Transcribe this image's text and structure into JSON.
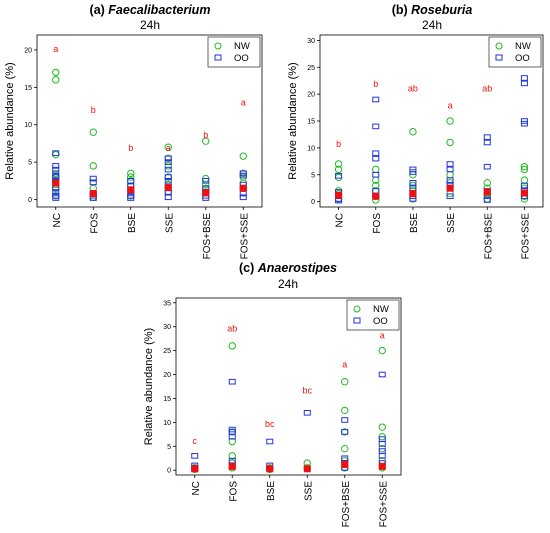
{
  "chart_data": [
    {
      "type": "scatter",
      "panel_label": "(a)",
      "title": "Faecalibacterium",
      "subtitle": "24h",
      "ylabel": "Relative abundance (%)",
      "xlabel": "",
      "categories": [
        "NC",
        "FOS",
        "BSE",
        "SSE",
        "FOS+BSE",
        "FOS+SSE"
      ],
      "ylim": [
        -1,
        22
      ],
      "yticks": [
        0,
        5,
        10,
        15,
        20
      ],
      "grid": false,
      "legend": {
        "position": "top-right",
        "entries": [
          "NW",
          "OO"
        ]
      },
      "series": [
        {
          "name": "NW",
          "marker": "circle",
          "values": [
            [
              17.0,
              16.0,
              6.0,
              3.5,
              3.0,
              2.5,
              2.0,
              1.5,
              0.5
            ],
            [
              9.0,
              4.5,
              1.5,
              0.8,
              0.3
            ],
            [
              3.5,
              3.0,
              2.5,
              1.8,
              1.2,
              0.5
            ],
            [
              7.0,
              5.5,
              4.5,
              3.0,
              2.0,
              1.0
            ],
            [
              7.8,
              2.8,
              2.0,
              1.5,
              1.0
            ],
            [
              5.8,
              3.5,
              3.0,
              2.2,
              1.5
            ]
          ]
        },
        {
          "name": "OO",
          "marker": "square",
          "values": [
            [
              6.2,
              4.5,
              4.0,
              3.2,
              3.0,
              2.5,
              1.5,
              1.0,
              0.5,
              0.2
            ],
            [
              2.8,
              2.3,
              0.8,
              0.5,
              0.2
            ],
            [
              2.5,
              1.8,
              1.0,
              0.5,
              0.2
            ],
            [
              5.5,
              5.0,
              4.0,
              3.0,
              2.5,
              1.5,
              1.0,
              0.3
            ],
            [
              2.5,
              1.5,
              1.0,
              0.5,
              0.2
            ],
            [
              3.5,
              3.2,
              2.0,
              1.5,
              0.8,
              0.3
            ]
          ]
        },
        {
          "name": "",
          "marker": "red-square",
          "values": [
            2.2,
            0.8,
            1.3,
            1.6,
            0.9,
            1.5
          ]
        }
      ],
      "annotations": [
        "a",
        "b",
        "b",
        "a",
        "b",
        "a"
      ],
      "annotation_heights": [
        19.7,
        11.6,
        6.5,
        6.5,
        8.2,
        12.6
      ]
    },
    {
      "type": "scatter",
      "panel_label": "(b)",
      "title": "Roseburia",
      "subtitle": "24h",
      "ylabel": "Relative abundance (%)",
      "xlabel": "",
      "categories": [
        "NC",
        "FOS",
        "BSE",
        "SSE",
        "FOS+BSE",
        "FOS+SSE"
      ],
      "ylim": [
        -1,
        31
      ],
      "yticks": [
        0,
        5,
        10,
        15,
        20,
        25,
        30
      ],
      "grid": false,
      "legend": {
        "position": "top-right",
        "entries": [
          "NW",
          "OO"
        ]
      },
      "series": [
        {
          "name": "NW",
          "marker": "circle",
          "values": [
            [
              7.0,
              6.0,
              4.5,
              2.0,
              1.5,
              0.5
            ],
            [
              6.0,
              4.0,
              3.0,
              2.0,
              1.0,
              0.3
            ],
            [
              13.0,
              5.0,
              3.0,
              2.0,
              1.5,
              0.5
            ],
            [
              15.0,
              11.0,
              5.0,
              3.5,
              1.5
            ],
            [
              3.5,
              2.5,
              1.5,
              0.5
            ],
            [
              6.5,
              6.0,
              4.0,
              2.5,
              1.0,
              0.5
            ]
          ]
        },
        {
          "name": "OO",
          "marker": "square",
          "values": [
            [
              4.8,
              1.8,
              1.0,
              0.5,
              0.2
            ],
            [
              19.0,
              14.0,
              9.0,
              8.0,
              5.0,
              2.0,
              1.0
            ],
            [
              6.0,
              5.5,
              3.5,
              2.5,
              1.5,
              1.0,
              0.5
            ],
            [
              7.0,
              6.0,
              4.0,
              3.0,
              2.5,
              1.0
            ],
            [
              12.0,
              11.0,
              6.5,
              2.0,
              1.0,
              0.3
            ],
            [
              23.0,
              22.0,
              15.0,
              14.5,
              3.0,
              2.0,
              1.0
            ]
          ]
        },
        {
          "name": "",
          "marker": "red-square",
          "values": [
            1.2,
            1.0,
            1.5,
            2.5,
            1.8,
            1.6
          ]
        }
      ],
      "annotations": [
        "b",
        "b",
        "ab",
        "a",
        "ab",
        "ab"
      ],
      "annotation_heights": [
        10.2,
        21.3,
        20.5,
        17.3,
        20.5,
        25.8
      ]
    },
    {
      "type": "scatter",
      "panel_label": "(c)",
      "title": "Anaerostipes",
      "subtitle": "24h",
      "ylabel": "Relative abundance (%)",
      "xlabel": "",
      "categories": [
        "NC",
        "FOS",
        "BSE",
        "SSE",
        "FOS+BSE",
        "FOS+SSE"
      ],
      "ylim": [
        -1,
        36
      ],
      "yticks": [
        0,
        5,
        10,
        15,
        20,
        25,
        30,
        35
      ],
      "grid": false,
      "legend": {
        "position": "top-right",
        "entries": [
          "NW",
          "OO"
        ]
      },
      "series": [
        {
          "name": "NW",
          "marker": "circle",
          "values": [
            [
              0.5,
              0.2
            ],
            [
              26.0,
              8.0,
              6.0,
              3.0,
              1.5,
              0.5
            ],
            [
              0.5,
              0.2
            ],
            [
              1.5,
              0.5
            ],
            [
              18.5,
              12.5,
              8.0,
              4.5,
              2.0,
              0.5
            ],
            [
              25.0,
              9.0,
              7.0,
              4.5,
              2.0,
              0.5
            ]
          ]
        },
        {
          "name": "OO",
          "marker": "square",
          "values": [
            [
              3.0,
              1.0,
              0.5,
              0.2
            ],
            [
              18.5,
              8.5,
              8.0,
              7.0,
              2.0,
              1.0
            ],
            [
              6.0,
              1.0,
              0.3
            ],
            [
              12.0
            ],
            [
              10.5,
              8.0,
              2.5,
              1.5,
              0.5
            ],
            [
              20.0,
              6.5,
              5.5,
              4.0,
              3.0,
              1.5
            ]
          ]
        },
        {
          "name": "",
          "marker": "red-square",
          "values": [
            0.3,
            0.8,
            0.3,
            0.3,
            1.2,
            0.8
          ]
        }
      ],
      "annotations": [
        "c",
        "ab",
        "bc",
        "bc",
        "a",
        "a"
      ],
      "annotation_heights": [
        5.5,
        29.0,
        9.0,
        16.0,
        21.5,
        27.5
      ]
    }
  ]
}
